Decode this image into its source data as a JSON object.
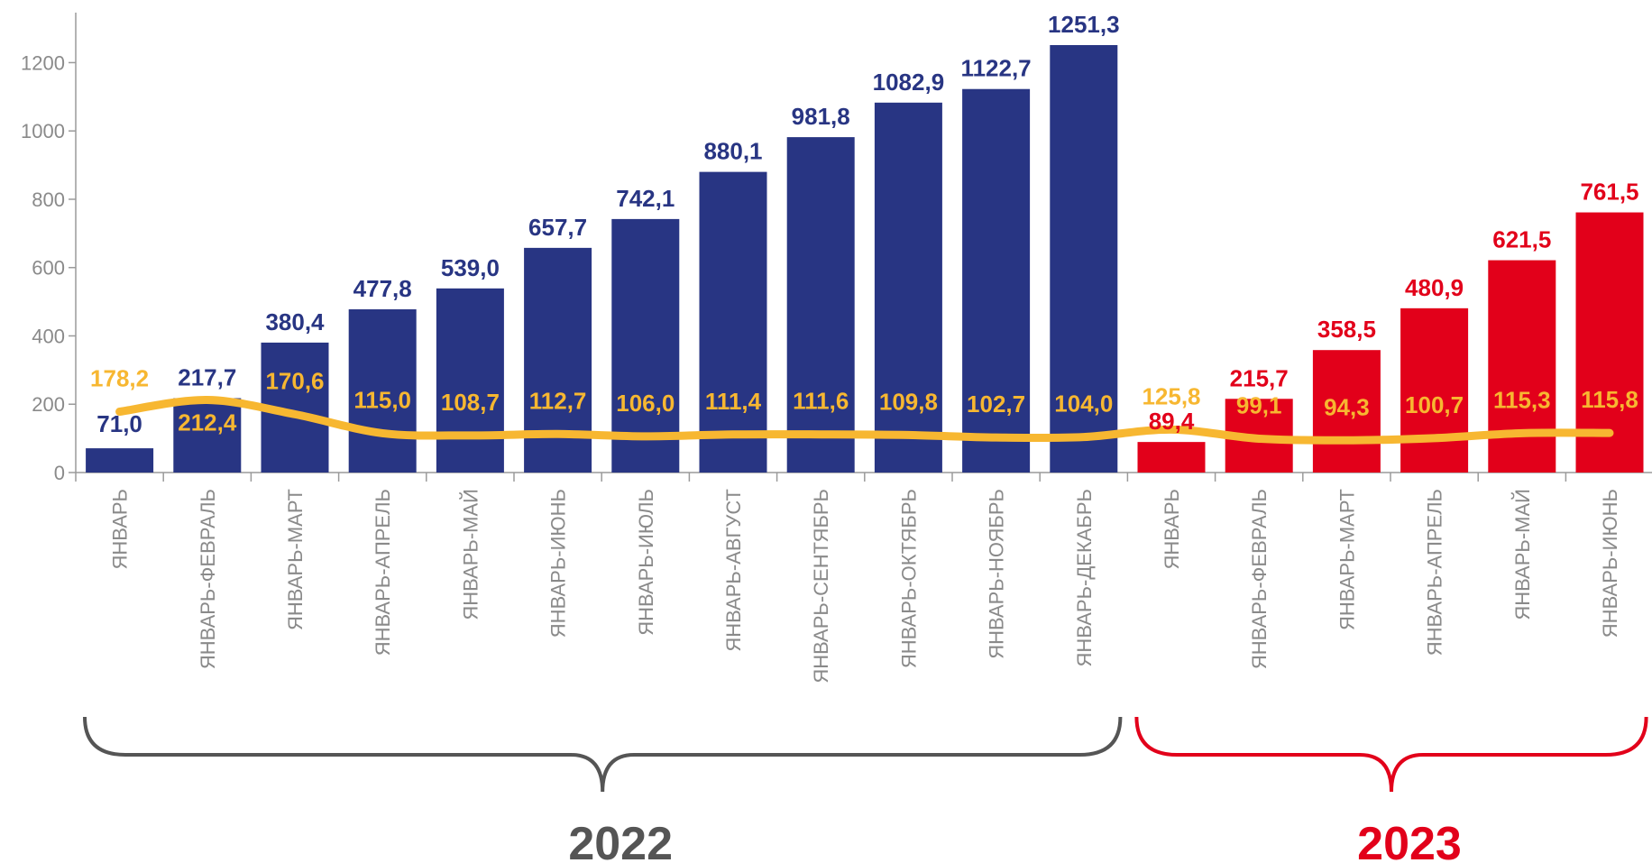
{
  "chart_data": {
    "type": "bar",
    "categories": [
      "ЯНВАРЬ",
      "ЯНВАРЬ-ФЕВРАЛЬ",
      "ЯНВАРЬ-МАРТ",
      "ЯНВАРЬ-АПРЕЛЬ",
      "ЯНВАРЬ-МАЙ",
      "ЯНВАРЬ-ИЮНЬ",
      "ЯНВАРЬ-ИЮЛЬ",
      "ЯНВАРЬ-АВГУСТ",
      "ЯНВАРЬ-СЕНТЯБРЬ",
      "ЯНВАРЬ-ОКТЯБРЬ",
      "ЯНВАРЬ-НОЯБРЬ",
      "ЯНВАРЬ-ДЕКАБРЬ",
      "ЯНВАРЬ",
      "ЯНВАРЬ-ФЕВРАЛЬ",
      "ЯНВАРЬ-МАРТ",
      "ЯНВАРЬ-АПРЕЛЬ",
      "ЯНВАРЬ-МАЙ",
      "ЯНВАРЬ-ИЮНЬ"
    ],
    "bar_values": [
      71.0,
      217.7,
      380.4,
      477.8,
      539.0,
      657.7,
      742.1,
      880.1,
      981.8,
      1082.9,
      1122.7,
      1251.3,
      89.4,
      215.7,
      358.5,
      480.9,
      621.5,
      761.5
    ],
    "bar_labels": [
      "71,0",
      "217,7",
      "380,4",
      "477,8",
      "539,0",
      "657,7",
      "742,1",
      "880,1",
      "981,8",
      "1082,9",
      "1122,7",
      "1251,3",
      "89,4",
      "215,7",
      "358,5",
      "480,9",
      "621,5",
      "761,5"
    ],
    "line_values": [
      178.2,
      212.4,
      170.6,
      115.0,
      108.7,
      112.7,
      106.0,
      111.4,
      111.6,
      109.8,
      102.7,
      104.0,
      125.8,
      99.1,
      94.3,
      100.7,
      115.3,
      115.8
    ],
    "line_labels": [
      "178,2",
      "212,4",
      "170,6",
      "115,0",
      "108,7",
      "112,7",
      "106,0",
      "111,4",
      "111,6",
      "109,8",
      "102,7",
      "104,0",
      "125,8",
      "99,1",
      "94,3",
      "100,7",
      "115,3",
      "115,8"
    ],
    "groups": [
      {
        "label": "2022",
        "start": 0,
        "end": 11,
        "bar_color": "#283583",
        "bracket_color": "#555555"
      },
      {
        "label": "2023",
        "start": 12,
        "end": 17,
        "bar_color": "#e2001a",
        "bracket_color": "#e2001a"
      }
    ],
    "line_color": "#f7b731",
    "yticks": [
      0,
      200,
      400,
      600,
      800,
      1000,
      1200
    ],
    "ylim": [
      0,
      1350
    ],
    "xlabel": "",
    "ylabel": "",
    "grid": false
  }
}
